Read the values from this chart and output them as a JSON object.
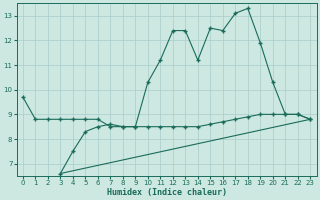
{
  "xlabel": "Humidex (Indice chaleur)",
  "xlim": [
    -0.5,
    23.5
  ],
  "ylim": [
    6.5,
    13.5
  ],
  "xticks": [
    0,
    1,
    2,
    3,
    4,
    5,
    6,
    7,
    8,
    9,
    10,
    11,
    12,
    13,
    14,
    15,
    16,
    17,
    18,
    19,
    20,
    21,
    22,
    23
  ],
  "yticks": [
    7,
    8,
    9,
    10,
    11,
    12,
    13
  ],
  "bg_color": "#cce8e0",
  "grid_color": "#aacccc",
  "line_color": "#1a6b5a",
  "line1_x": [
    0,
    1,
    2,
    3,
    4,
    5,
    6,
    7,
    8,
    9,
    10,
    11,
    12,
    13,
    14,
    15,
    16,
    17,
    18,
    19,
    20,
    21,
    22,
    23
  ],
  "line1_y": [
    9.7,
    8.8,
    8.8,
    8.8,
    8.8,
    8.8,
    8.8,
    8.5,
    8.5,
    8.5,
    8.5,
    8.5,
    8.5,
    8.5,
    8.5,
    8.6,
    8.7,
    8.8,
    8.9,
    9.0,
    9.0,
    9.0,
    9.0,
    8.8
  ],
  "line2_x": [
    3,
    4,
    5,
    6,
    7,
    8,
    9,
    10,
    11,
    12,
    13,
    14,
    15,
    16,
    17,
    18,
    19,
    20,
    21,
    22,
    23
  ],
  "line2_y": [
    6.6,
    7.5,
    8.3,
    8.5,
    8.6,
    8.5,
    8.5,
    10.3,
    11.2,
    12.4,
    12.4,
    11.2,
    12.5,
    12.4,
    13.1,
    13.3,
    11.9,
    10.3,
    9.0,
    9.0,
    8.8
  ],
  "line3_x": [
    3,
    23
  ],
  "line3_y": [
    6.6,
    8.8
  ]
}
